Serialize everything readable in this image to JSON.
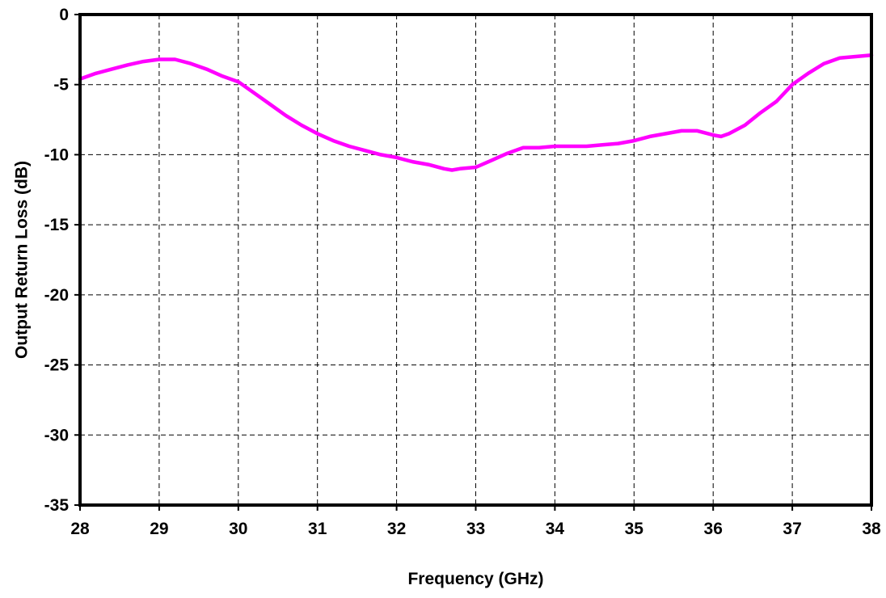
{
  "chart_data": {
    "type": "line",
    "title": "",
    "xlabel": "Frequency (GHz)",
    "ylabel": "Output Return Loss (dB)",
    "xlim": [
      28,
      38
    ],
    "ylim": [
      -35,
      0
    ],
    "xticks": [
      28,
      29,
      30,
      31,
      32,
      33,
      34,
      35,
      36,
      37,
      38
    ],
    "yticks": [
      0,
      -5,
      -10,
      -15,
      -20,
      -25,
      -30,
      -35
    ],
    "xtick_labels": [
      "28",
      "29",
      "30",
      "31",
      "32",
      "33",
      "34",
      "35",
      "36",
      "37",
      "38"
    ],
    "ytick_labels": [
      "0",
      "-5",
      "-10",
      "-15",
      "-20",
      "-25",
      "-30",
      "-35"
    ],
    "grid": true,
    "legend": "none",
    "series": [
      {
        "color": "#ff00ff",
        "x": [
          28.0,
          28.2,
          28.4,
          28.6,
          28.8,
          29.0,
          29.2,
          29.4,
          29.6,
          29.8,
          30.0,
          30.2,
          30.4,
          30.6,
          30.8,
          31.0,
          31.2,
          31.4,
          31.6,
          31.8,
          32.0,
          32.2,
          32.4,
          32.6,
          32.7,
          32.8,
          33.0,
          33.2,
          33.4,
          33.6,
          33.8,
          34.0,
          34.2,
          34.4,
          34.6,
          34.8,
          35.0,
          35.2,
          35.4,
          35.6,
          35.8,
          36.0,
          36.1,
          36.2,
          36.4,
          36.6,
          36.8,
          37.0,
          37.2,
          37.4,
          37.6,
          37.8,
          38.0
        ],
        "y": [
          -4.6,
          -4.2,
          -3.9,
          -3.6,
          -3.35,
          -3.2,
          -3.2,
          -3.5,
          -3.9,
          -4.4,
          -4.8,
          -5.6,
          -6.4,
          -7.2,
          -7.9,
          -8.5,
          -9.0,
          -9.4,
          -9.7,
          -10.0,
          -10.2,
          -10.5,
          -10.7,
          -11.0,
          -11.1,
          -11.0,
          -10.9,
          -10.4,
          -9.9,
          -9.5,
          -9.5,
          -9.4,
          -9.4,
          -9.4,
          -9.3,
          -9.2,
          -9.0,
          -8.7,
          -8.5,
          -8.3,
          -8.3,
          -8.6,
          -8.7,
          -8.5,
          -7.9,
          -7.0,
          -6.2,
          -5.0,
          -4.2,
          -3.5,
          -3.1,
          -3.0,
          -2.9
        ]
      }
    ]
  }
}
